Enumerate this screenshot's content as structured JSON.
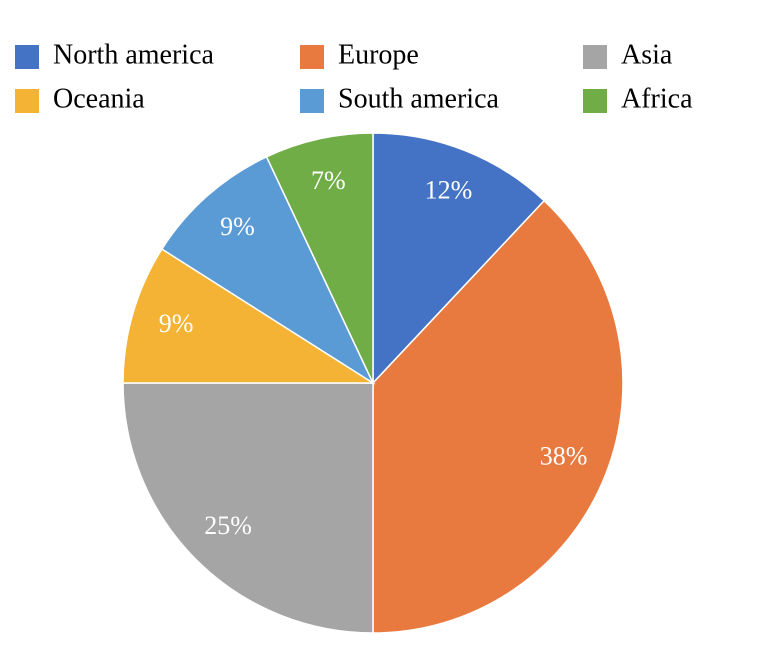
{
  "chart_data": {
    "type": "pie",
    "categories": [
      "North america",
      "Europe",
      "Asia",
      "Oceania",
      "South america",
      "Africa"
    ],
    "values": [
      12,
      38,
      25,
      9,
      9,
      7
    ],
    "value_labels": [
      "12%",
      "38%",
      "25%",
      "9%",
      "9%",
      "7%"
    ],
    "colors": [
      "#4472c4",
      "#e97a3f",
      "#a5a5a5",
      "#f5b335",
      "#5b9bd5",
      "#70ad47"
    ],
    "legend": "top"
  }
}
